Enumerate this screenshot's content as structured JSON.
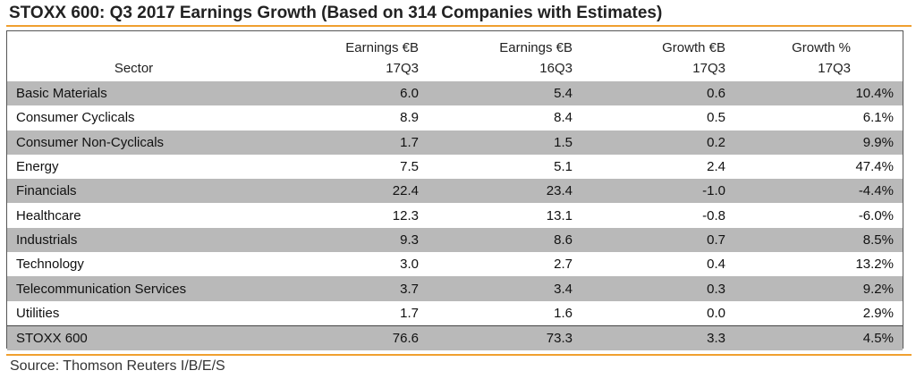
{
  "title": "STOXX 600: Q3 2017 Earnings Growth (Based on 314 Companies with Estimates)",
  "colors": {
    "accent_rule": "#f0a030",
    "row_shade": "#b9b9b9"
  },
  "table": {
    "headers": {
      "sector": "Sector",
      "earnings_17q3": [
        "Earnings €B",
        "17Q3"
      ],
      "earnings_16q3": [
        "Earnings €B",
        "16Q3"
      ],
      "growth_eur": [
        "Growth €B",
        "17Q3"
      ],
      "growth_pct": [
        "Growth %",
        "17Q3"
      ]
    },
    "rows": [
      {
        "sector": "Basic Materials",
        "e17": "6.0",
        "e16": "5.4",
        "g": "0.6",
        "gp": "10.4%"
      },
      {
        "sector": "Consumer Cyclicals",
        "e17": "8.9",
        "e16": "8.4",
        "g": "0.5",
        "gp": "6.1%"
      },
      {
        "sector": "Consumer Non-Cyclicals",
        "e17": "1.7",
        "e16": "1.5",
        "g": "0.2",
        "gp": "9.9%"
      },
      {
        "sector": "Energy",
        "e17": "7.5",
        "e16": "5.1",
        "g": "2.4",
        "gp": "47.4%"
      },
      {
        "sector": "Financials",
        "e17": "22.4",
        "e16": "23.4",
        "g": "-1.0",
        "gp": "-4.4%"
      },
      {
        "sector": "Healthcare",
        "e17": "12.3",
        "e16": "13.1",
        "g": "-0.8",
        "gp": "-6.0%"
      },
      {
        "sector": "Industrials",
        "e17": "9.3",
        "e16": "8.6",
        "g": "0.7",
        "gp": "8.5%"
      },
      {
        "sector": "Technology",
        "e17": "3.0",
        "e16": "2.7",
        "g": "0.4",
        "gp": "13.2%"
      },
      {
        "sector": "Telecommunication Services",
        "e17": "3.7",
        "e16": "3.4",
        "g": "0.3",
        "gp": "9.2%"
      },
      {
        "sector": "Utilities",
        "e17": "1.7",
        "e16": "1.6",
        "g": "0.0",
        "gp": "2.9%"
      }
    ],
    "total": {
      "sector": "STOXX 600",
      "e17": "76.6",
      "e16": "73.3",
      "g": "3.3",
      "gp": "4.5%"
    }
  },
  "source": "Source: Thomson Reuters I/B/E/S"
}
